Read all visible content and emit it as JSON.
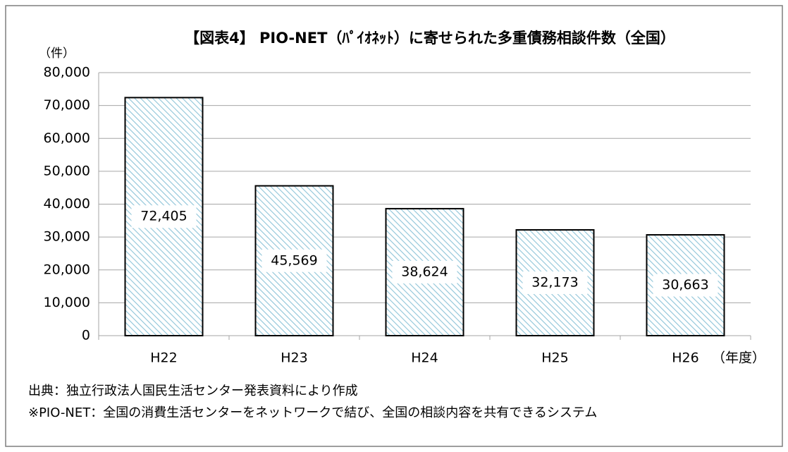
{
  "chart_data": {
    "type": "bar",
    "title": "【図表4】 PIO-NET（ﾊﾟｲｵﾈｯﾄ）に寄せられた多重債務相談件数（全国）",
    "y_label": "（件）",
    "x_label": "（年度）",
    "categories": [
      "H22",
      "H23",
      "H24",
      "H25",
      "H26"
    ],
    "values": [
      72405,
      45569,
      38624,
      32173,
      30663
    ],
    "value_labels": [
      "72,405",
      "45,569",
      "38,624",
      "32,173",
      "30,663"
    ],
    "color": "#8ec4d8",
    "ylim": [
      0,
      80000
    ],
    "yticks": [
      0,
      {
        "value": 10000,
        "label": "10,000"
      },
      {
        "value": 20000,
        "label": "20,000"
      },
      {
        "value": 30000,
        "label": "30,000"
      },
      {
        "value": 40000,
        "label": "40,000"
      },
      {
        "value": 50000,
        "label": "50,000"
      },
      {
        "value": 60000,
        "label": "60,000"
      },
      {
        "value": 70000,
        "label": "70,000"
      },
      {
        "value": 80000,
        "label": "80,000"
      }
    ],
    "grid": true,
    "source": "出典：独立行政法人国民生活センター発表資料により作成",
    "note": "※PIO-NET：全国の消費生活センターをネットワークで結び、全国の相談内容を共有できるシステム"
  }
}
